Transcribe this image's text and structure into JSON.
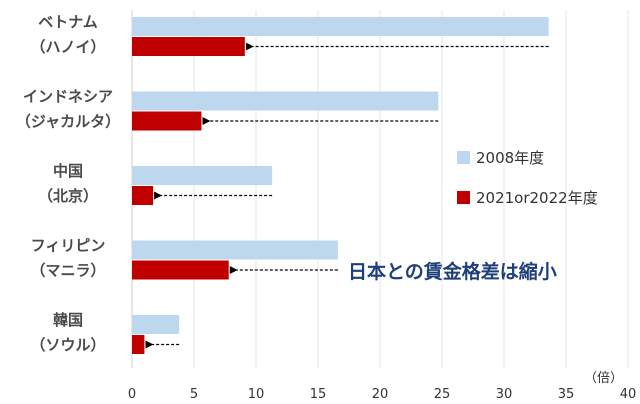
{
  "chart_data": {
    "type": "bar",
    "orientation": "horizontal",
    "categories": [
      {
        "line1": "ベトナム",
        "line2": "（ハノイ）"
      },
      {
        "line1": "インドネシア",
        "line2": "（ジャカルタ）"
      },
      {
        "line1": "中国",
        "line2": "（北京）"
      },
      {
        "line1": "フィリピン",
        "line2": "（マニラ）"
      },
      {
        "line1": "韓国",
        "line2": "（ソウル）"
      }
    ],
    "series": [
      {
        "name": "2008年度",
        "color": "#bdd7ee",
        "values": [
          33.6,
          24.7,
          11.3,
          16.6,
          3.8
        ]
      },
      {
        "name": "2021or2022年度",
        "color": "#c00000",
        "values": [
          9.1,
          5.6,
          1.7,
          7.8,
          1.0
        ]
      }
    ],
    "xlim": [
      0,
      40
    ],
    "xticks": [
      0,
      5,
      10,
      15,
      20,
      25,
      30,
      35,
      40
    ],
    "xunit": "（倍）",
    "annotation": "日本との賃金格差は縮小",
    "legend_position": "right",
    "arrows": "dashed arrows from 2008 value back to 2021/2022 value"
  }
}
